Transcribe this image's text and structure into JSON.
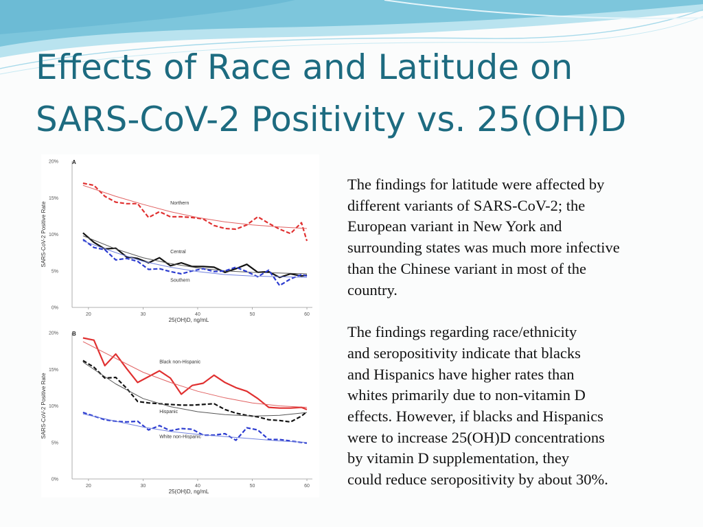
{
  "slide": {
    "title_lines": [
      "Effects of Race and Latitude on",
      "SARS-CoV-2 Positivity vs. 25(OH)D"
    ],
    "paragraph1_lines": [
      "The findings for latitude were affected by",
      "different variants of SARS-CoV-2; the",
      "European variant in New York and",
      "surrounding states was much more infective",
      "than the Chinese variant in most of the",
      "country."
    ],
    "paragraph2_lines": [
      "The findings regarding race/ethnicity",
      "and seropositivity indicate that blacks",
      "and Hispanics have higher rates than",
      "whites primarily due to non-vitamin D",
      "effects. However, if blacks and Hispanics",
      "were to increase 25(OH)D concentrations",
      "by vitamin D supplementation, they",
      "could reduce seropositivity by about 30%."
    ],
    "colors": {
      "title": "#1d6b80",
      "wave_dark": "#7dc6dc",
      "wave_light": "#b9e3ef"
    }
  },
  "chart_data": [
    {
      "type": "line",
      "panel_label": "A",
      "xlabel": "25(OH)D, ng/mL",
      "ylabel": "SARS-CoV-2 Positive Rate",
      "xlim": [
        17,
        61
      ],
      "ylim": [
        0,
        20
      ],
      "xticks": [
        20,
        30,
        40,
        50,
        60
      ],
      "xtick_labels": [
        "20",
        "30",
        "40",
        "50",
        "60"
      ],
      "yticks": [
        0,
        5,
        10,
        15,
        20
      ],
      "ytick_labels": [
        "0%",
        "5%",
        "10%",
        "15%",
        "20%"
      ],
      "series": [
        {
          "name": "Northern",
          "color": "#e03030",
          "dash": "6,3",
          "width": 2.2,
          "x": [
            19,
            21,
            23,
            25,
            27,
            29,
            31,
            33,
            35,
            37,
            39,
            41,
            43,
            45,
            47,
            49,
            51,
            53,
            55,
            57,
            59,
            60
          ],
          "y": [
            17,
            16.7,
            15.2,
            14.4,
            14.2,
            14.2,
            12.3,
            13.1,
            12.4,
            12.4,
            12.3,
            12.1,
            11.2,
            10.8,
            10.7,
            11.3,
            12.4,
            11.5,
            10.7,
            10.1,
            11.6,
            9.1
          ]
        },
        {
          "name": "Northern fit",
          "color": "#e06060",
          "dash": "",
          "width": 1,
          "x": [
            19,
            25,
            30,
            35,
            40,
            45,
            50,
            55,
            60
          ],
          "y": [
            16.7,
            15.2,
            14.1,
            13.1,
            12.3,
            11.7,
            11.3,
            11.0,
            10.8
          ]
        },
        {
          "name": "Central",
          "color": "#111111",
          "dash": "",
          "width": 2.2,
          "x": [
            19,
            21,
            23,
            25,
            27,
            29,
            31,
            33,
            35,
            37,
            39,
            41,
            43,
            45,
            47,
            49,
            51,
            53,
            55,
            57,
            59,
            60
          ],
          "y": [
            10.2,
            8.9,
            8.0,
            8.1,
            6.9,
            6.7,
            6.1,
            6.8,
            5.7,
            6.1,
            5.6,
            5.6,
            5.5,
            4.8,
            5.3,
            5.9,
            4.8,
            4.9,
            4.1,
            4.6,
            4.3,
            4.4
          ]
        },
        {
          "name": "Central fit",
          "color": "#555555",
          "dash": "",
          "width": 1,
          "x": [
            19,
            25,
            30,
            35,
            40,
            45,
            50,
            55,
            60
          ],
          "y": [
            9.8,
            8.0,
            6.8,
            6.0,
            5.4,
            5.0,
            4.8,
            4.7,
            4.6
          ]
        },
        {
          "name": "Southern",
          "color": "#2b3bd0",
          "dash": "6,3",
          "width": 2.2,
          "x": [
            19,
            21,
            23,
            25,
            27,
            29,
            31,
            33,
            35,
            37,
            39,
            41,
            43,
            45,
            47,
            49,
            51,
            53,
            55,
            57,
            59,
            60
          ],
          "y": [
            9.3,
            8.2,
            7.9,
            6.5,
            6.7,
            6.3,
            5.2,
            5.3,
            4.9,
            4.6,
            5.0,
            5.3,
            4.9,
            5.0,
            5.5,
            4.9,
            4.2,
            5.1,
            3.0,
            3.9,
            4.5,
            4.3
          ]
        },
        {
          "name": "Southern fit",
          "color": "#7080dd",
          "dash": "",
          "width": 1,
          "x": [
            19,
            25,
            30,
            35,
            40,
            45,
            50,
            55,
            60
          ],
          "y": [
            9.1,
            7.5,
            6.3,
            5.5,
            4.9,
            4.5,
            4.3,
            4.2,
            4.1
          ]
        }
      ],
      "annotations": [
        {
          "text": "Northern",
          "x": 35,
          "y": 14.1
        },
        {
          "text": "Central",
          "x": 35,
          "y": 7.4
        },
        {
          "text": "Southern",
          "x": 35,
          "y": 3.5
        }
      ]
    },
    {
      "type": "line",
      "panel_label": "B",
      "xlabel": "25(OH)D, ng/mL",
      "ylabel": "SARS-CoV-2 Positive Rate",
      "xlim": [
        17,
        61
      ],
      "ylim": [
        0,
        20
      ],
      "xticks": [
        20,
        30,
        40,
        50,
        60
      ],
      "xtick_labels": [
        "20",
        "30",
        "40",
        "50",
        "60"
      ],
      "yticks": [
        0,
        5,
        10,
        15,
        20
      ],
      "ytick_labels": [
        "0%",
        "5%",
        "10%",
        "15%",
        "20%"
      ],
      "series": [
        {
          "name": "Black non-Hispanic",
          "color": "#e03030",
          "dash": "",
          "width": 2.2,
          "x": [
            19,
            21,
            23,
            25,
            27,
            29,
            31,
            33,
            35,
            37,
            39,
            41,
            43,
            45,
            47,
            49,
            51,
            53,
            55,
            57,
            59,
            60
          ],
          "y": [
            19.3,
            19.0,
            15.5,
            17.1,
            15.1,
            13.2,
            14.0,
            14.8,
            13.8,
            11.6,
            12.8,
            13.1,
            14.2,
            13.2,
            12.5,
            12.0,
            11.0,
            9.8,
            9.7,
            9.7,
            9.8,
            9.5
          ]
        },
        {
          "name": "Black fit",
          "color": "#e06060",
          "dash": "",
          "width": 1,
          "x": [
            19,
            25,
            30,
            35,
            40,
            45,
            50,
            55,
            60
          ],
          "y": [
            18.8,
            16.5,
            14.6,
            13.2,
            12.0,
            11.1,
            10.4,
            10.0,
            9.8
          ]
        },
        {
          "name": "Hispanic",
          "color": "#111111",
          "dash": "6,3",
          "width": 2.2,
          "x": [
            19,
            21,
            23,
            25,
            27,
            29,
            31,
            33,
            35,
            37,
            39,
            41,
            43,
            45,
            47,
            49,
            51,
            53,
            55,
            57,
            59,
            60
          ],
          "y": [
            16.2,
            15.3,
            13.8,
            13.9,
            12.4,
            10.6,
            10.4,
            10.3,
            10.2,
            10.1,
            10.1,
            10.2,
            10.3,
            9.5,
            9.0,
            8.7,
            8.5,
            8.1,
            8.0,
            7.8,
            8.6,
            9.2
          ]
        },
        {
          "name": "Hispanic fit",
          "color": "#555555",
          "dash": "",
          "width": 1,
          "x": [
            19,
            25,
            30,
            35,
            40,
            45,
            50,
            55,
            60
          ],
          "y": [
            16.0,
            13.0,
            11.0,
            9.9,
            9.2,
            8.8,
            8.6,
            8.7,
            9.1
          ]
        },
        {
          "name": "White non-Hispanic",
          "color": "#2b3bd0",
          "dash": "6,3",
          "width": 2.2,
          "x": [
            19,
            21,
            23,
            25,
            27,
            29,
            31,
            33,
            35,
            37,
            39,
            41,
            43,
            45,
            47,
            49,
            51,
            53,
            55,
            57,
            59,
            60
          ],
          "y": [
            9.1,
            8.6,
            8.1,
            7.9,
            7.8,
            7.9,
            6.7,
            7.3,
            6.6,
            6.9,
            6.8,
            6.0,
            6.0,
            6.2,
            5.3,
            7.0,
            6.7,
            5.4,
            5.4,
            5.2,
            5.0,
            4.9
          ]
        },
        {
          "name": "White fit",
          "color": "#7080dd",
          "dash": "",
          "width": 1,
          "x": [
            19,
            25,
            30,
            35,
            40,
            45,
            50,
            55,
            60
          ],
          "y": [
            8.9,
            7.9,
            7.1,
            6.5,
            6.1,
            5.8,
            5.5,
            5.2,
            5.0
          ]
        }
      ],
      "annotations": [
        {
          "text": "Black non-Hispanic",
          "x": 33,
          "y": 15.8
        },
        {
          "text": "Hispanic",
          "x": 33,
          "y": 9.0
        },
        {
          "text": "White non-Hispanic",
          "x": 33,
          "y": 5.6
        }
      ]
    }
  ]
}
